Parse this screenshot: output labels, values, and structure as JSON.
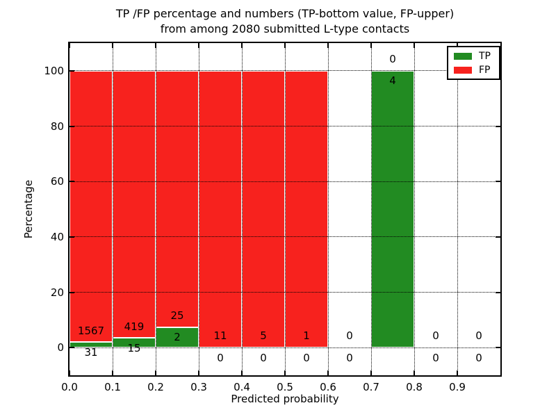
{
  "chart_data": {
    "type": "bar",
    "stacked": true,
    "title_line1": "TP /FP percentage and numbers (TP-bottom value, FP-upper)",
    "title_line2": "from among 2080 submitted L-type contacts",
    "xlabel": "Predicted probability",
    "ylabel": "Percentage",
    "xlim": [
      0.0,
      1.0
    ],
    "ylim": [
      -10,
      110
    ],
    "x_ticks": [
      "0.0",
      "0.1",
      "0.2",
      "0.3",
      "0.4",
      "0.5",
      "0.6",
      "0.7",
      "0.8",
      "0.9"
    ],
    "y_ticks": [
      "0",
      "20",
      "40",
      "60",
      "80",
      "100"
    ],
    "grid": true,
    "grid_style": "dotted",
    "total_submitted": 2080,
    "colors": {
      "tp": "#228b22",
      "fp": "#f7221e"
    },
    "legend": {
      "position": "upper-right",
      "entries": [
        {
          "name": "TP",
          "label": "TP",
          "color": "#228b22"
        },
        {
          "name": "FP",
          "label": "FP",
          "color": "#f7221e"
        }
      ]
    },
    "bins": [
      {
        "x_start": 0.0,
        "x_end": 0.1,
        "tp_count": 31,
        "fp_count": 1567,
        "tp_pct": 1.94,
        "fp_pct": 98.06
      },
      {
        "x_start": 0.1,
        "x_end": 0.2,
        "tp_count": 15,
        "fp_count": 419,
        "tp_pct": 3.46,
        "fp_pct": 96.54
      },
      {
        "x_start": 0.2,
        "x_end": 0.3,
        "tp_count": 2,
        "fp_count": 25,
        "tp_pct": 7.41,
        "fp_pct": 92.59
      },
      {
        "x_start": 0.3,
        "x_end": 0.4,
        "tp_count": 0,
        "fp_count": 11,
        "tp_pct": 0,
        "fp_pct": 100
      },
      {
        "x_start": 0.4,
        "x_end": 0.5,
        "tp_count": 0,
        "fp_count": 5,
        "tp_pct": 0,
        "fp_pct": 100
      },
      {
        "x_start": 0.5,
        "x_end": 0.6,
        "tp_count": 0,
        "fp_count": 1,
        "tp_pct": 0,
        "fp_pct": 100
      },
      {
        "x_start": 0.6,
        "x_end": 0.7,
        "tp_count": 0,
        "fp_count": 0,
        "tp_pct": 0,
        "fp_pct": 0
      },
      {
        "x_start": 0.7,
        "x_end": 0.8,
        "tp_count": 4,
        "fp_count": 0,
        "tp_pct": 100,
        "fp_pct": 0
      },
      {
        "x_start": 0.8,
        "x_end": 0.9,
        "tp_count": 0,
        "fp_count": 0,
        "tp_pct": 0,
        "fp_pct": 0
      },
      {
        "x_start": 0.9,
        "x_end": 1.0,
        "tp_count": 0,
        "fp_count": 0,
        "tp_pct": 0,
        "fp_pct": 0
      }
    ]
  }
}
